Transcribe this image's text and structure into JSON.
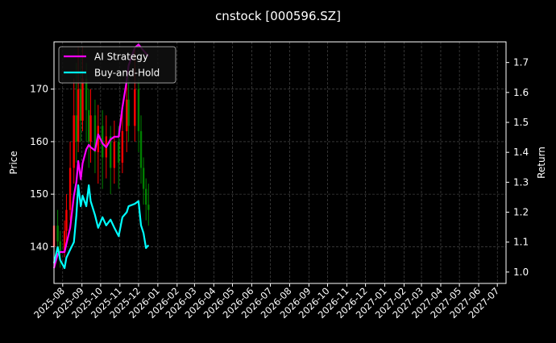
{
  "chart_data": {
    "type": "candlestick+line",
    "title": "cnstock [000596.SZ]",
    "ylabel_left": "Price",
    "ylabel_right": "Return",
    "ylim_left": [
      133,
      179
    ],
    "ylim_right": [
      0.962,
      1.769
    ],
    "xlim": [
      "2025-07-18",
      "2027-07-15"
    ],
    "grid": true,
    "legend_position": "top-left",
    "colors": {
      "up": "#ff0000",
      "down": "#008000",
      "ai": "#ff00ff",
      "bh": "#00ffff",
      "background": "#000000",
      "grid": "#555555"
    },
    "left_ticks": [
      140,
      150,
      160,
      170
    ],
    "right_ticks": [
      "1.0",
      "1.1",
      "1.2",
      "1.3",
      "1.4",
      "1.5",
      "1.6",
      "1.7"
    ],
    "x_ticks": [
      "2025-08",
      "2025-09",
      "2025-10",
      "2025-11",
      "2025-12",
      "2026-01",
      "2026-02",
      "2026-03",
      "2026-04",
      "2026-05",
      "2026-06",
      "2026-07",
      "2026-08",
      "2026-09",
      "2026-10",
      "2026-11",
      "2026-12",
      "2027-01",
      "2027-02",
      "2027-03",
      "2027-04",
      "2027-05",
      "2027-06",
      "2027-07"
    ],
    "dates": [
      "2025-07-18",
      "2025-07-24",
      "2025-07-28",
      "2025-08-04",
      "2025-08-07",
      "2025-08-13",
      "2025-08-19",
      "2025-08-23",
      "2025-08-26",
      "2025-08-30",
      "2025-09-02",
      "2025-09-08",
      "2025-09-12",
      "2025-09-15",
      "2025-09-22",
      "2025-09-27",
      "2025-10-04",
      "2025-10-10",
      "2025-10-17",
      "2025-10-23",
      "2025-10-30",
      "2025-11-05",
      "2025-11-12",
      "2025-11-15",
      "2025-11-25",
      "2025-12-01",
      "2025-12-05",
      "2025-12-09",
      "2025-12-13",
      "2025-12-17"
    ],
    "ohlc": [
      [
        140,
        148,
        138,
        144
      ],
      [
        144,
        147,
        139,
        141
      ],
      [
        141,
        143,
        136,
        139
      ],
      [
        139,
        145,
        138,
        143
      ],
      [
        143,
        150,
        141,
        147
      ],
      [
        147,
        160,
        145,
        155
      ],
      [
        155,
        172,
        152,
        165
      ],
      [
        165,
        175,
        156,
        160
      ],
      [
        160,
        178,
        158,
        170
      ],
      [
        170,
        176,
        160,
        164
      ],
      [
        164,
        178,
        162,
        172
      ],
      [
        172,
        175,
        160,
        166
      ],
      [
        166,
        170,
        155,
        160
      ],
      [
        160,
        170,
        156,
        165
      ],
      [
        165,
        168,
        154,
        158
      ],
      [
        158,
        167,
        152,
        163
      ],
      [
        163,
        166,
        151,
        157
      ],
      [
        157,
        165,
        153,
        161
      ],
      [
        161,
        163,
        150,
        155
      ],
      [
        155,
        164,
        152,
        160
      ],
      [
        160,
        163,
        151,
        156
      ],
      [
        156,
        166,
        154,
        162
      ],
      [
        162,
        172,
        158,
        168
      ],
      [
        168,
        175,
        160,
        163
      ],
      [
        163,
        178,
        160,
        170
      ],
      [
        170,
        172,
        158,
        162
      ],
      [
        162,
        165,
        152,
        155
      ],
      [
        155,
        157,
        148,
        151
      ],
      [
        151,
        153,
        145,
        148
      ],
      [
        148,
        152,
        144,
        147
      ]
    ],
    "series": [
      {
        "name": "AI Strategy",
        "values": [
          1.013,
          1.06,
          1.067,
          1.067,
          1.094,
          1.148,
          1.255,
          1.3,
          1.371,
          1.31,
          1.363,
          1.41,
          1.425,
          1.417,
          1.406,
          1.46,
          1.43,
          1.417,
          1.443,
          1.452,
          1.452,
          1.55,
          1.64,
          1.69,
          1.75,
          1.76,
          1.75,
          1.74,
          1.73,
          1.72
        ]
      },
      {
        "name": "Buy-and-Hold",
        "values": [
          1.03,
          1.083,
          1.04,
          1.013,
          1.048,
          1.075,
          1.1,
          1.19,
          1.29,
          1.22,
          1.255,
          1.22,
          1.29,
          1.237,
          1.19,
          1.148,
          1.183,
          1.156,
          1.175,
          1.148,
          1.12,
          1.183,
          1.2,
          1.22,
          1.228,
          1.237,
          1.156,
          1.13,
          1.08,
          1.09
        ]
      }
    ]
  }
}
